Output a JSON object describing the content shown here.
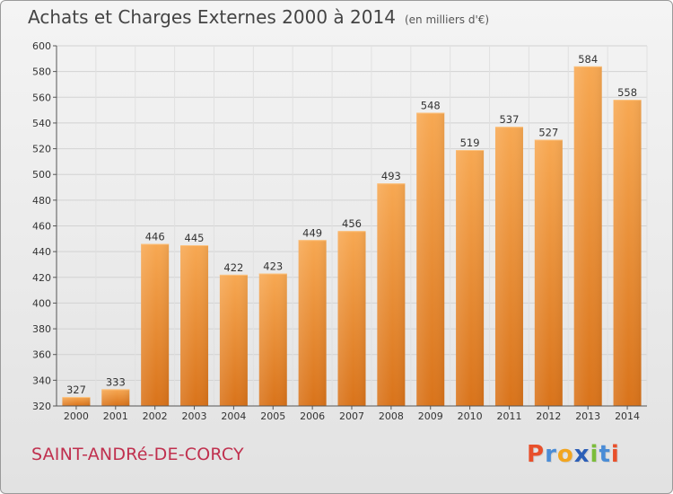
{
  "title": "Achats et Charges Externes 2000 à 2014",
  "unit": "(en milliers d'€)",
  "commune": "SAINT-ANDRé-DE-CORCY",
  "logo": {
    "letters": [
      "P",
      "r",
      "o",
      "x",
      "i",
      "t",
      "i"
    ],
    "colors": [
      "#e8502b",
      "#4a8cd6",
      "#f2a51f",
      "#2c5fb7",
      "#7bbd3a",
      "#4a8cd6",
      "#e8502b"
    ]
  },
  "colors": {
    "bar": "#f08c2c",
    "bar_light": "#f7a957",
    "grid": "#cfcfcf"
  },
  "chart_data": {
    "type": "bar",
    "categories": [
      "2000",
      "2001",
      "2002",
      "2003",
      "2004",
      "2005",
      "2006",
      "2007",
      "2008",
      "2009",
      "2010",
      "2011",
      "2012",
      "2013",
      "2014"
    ],
    "values": [
      327,
      333,
      446,
      445,
      422,
      423,
      449,
      456,
      493,
      548,
      519,
      537,
      527,
      584,
      558
    ],
    "ylim": [
      320,
      600
    ],
    "yticks": [
      320,
      340,
      360,
      380,
      400,
      420,
      440,
      460,
      480,
      500,
      520,
      540,
      560,
      580,
      600
    ],
    "grid": true
  }
}
